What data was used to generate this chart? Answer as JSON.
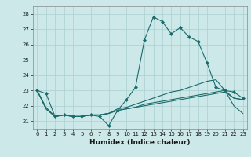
{
  "xlabel": "Humidex (Indice chaleur)",
  "background_color": "#cce8e8",
  "grid_color": "#aacfcf",
  "line_color": "#1a6b6b",
  "x_ticks": [
    0,
    1,
    2,
    3,
    4,
    5,
    6,
    7,
    8,
    9,
    10,
    11,
    12,
    13,
    14,
    15,
    16,
    17,
    18,
    19,
    20,
    21,
    22,
    23
  ],
  "y_ticks": [
    21,
    22,
    23,
    24,
    25,
    26,
    27,
    28
  ],
  "ylim": [
    20.5,
    28.5
  ],
  "xlim": [
    -0.5,
    23.5
  ],
  "series": [
    [
      23.0,
      22.8,
      21.3,
      21.4,
      21.3,
      21.3,
      21.4,
      21.3,
      20.7,
      21.7,
      22.4,
      23.2,
      26.3,
      27.8,
      27.5,
      26.7,
      27.1,
      26.5,
      26.2,
      24.8,
      23.2,
      23.0,
      22.9,
      22.5
    ],
    [
      23.0,
      21.9,
      21.3,
      21.4,
      21.3,
      21.3,
      21.4,
      21.4,
      21.5,
      21.8,
      21.9,
      22.1,
      22.3,
      22.5,
      22.7,
      22.9,
      23.0,
      23.2,
      23.4,
      23.6,
      23.7,
      23.0,
      22.0,
      21.5
    ],
    [
      23.0,
      21.8,
      21.3,
      21.4,
      21.3,
      21.3,
      21.4,
      21.4,
      21.5,
      21.7,
      21.8,
      21.9,
      22.0,
      22.1,
      22.2,
      22.3,
      22.4,
      22.5,
      22.6,
      22.7,
      22.8,
      22.9,
      22.5,
      22.4
    ],
    [
      23.0,
      21.8,
      21.3,
      21.4,
      21.3,
      21.3,
      21.4,
      21.4,
      21.5,
      21.7,
      21.8,
      21.9,
      22.1,
      22.2,
      22.3,
      22.4,
      22.5,
      22.6,
      22.7,
      22.8,
      22.9,
      23.0,
      22.5,
      22.4
    ]
  ],
  "marker_series": 0,
  "marker": "D",
  "marker_size": 2.0,
  "linewidth": 0.8,
  "tick_fontsize": 5.0,
  "xlabel_fontsize": 6.5,
  "spine_color": "#888888"
}
